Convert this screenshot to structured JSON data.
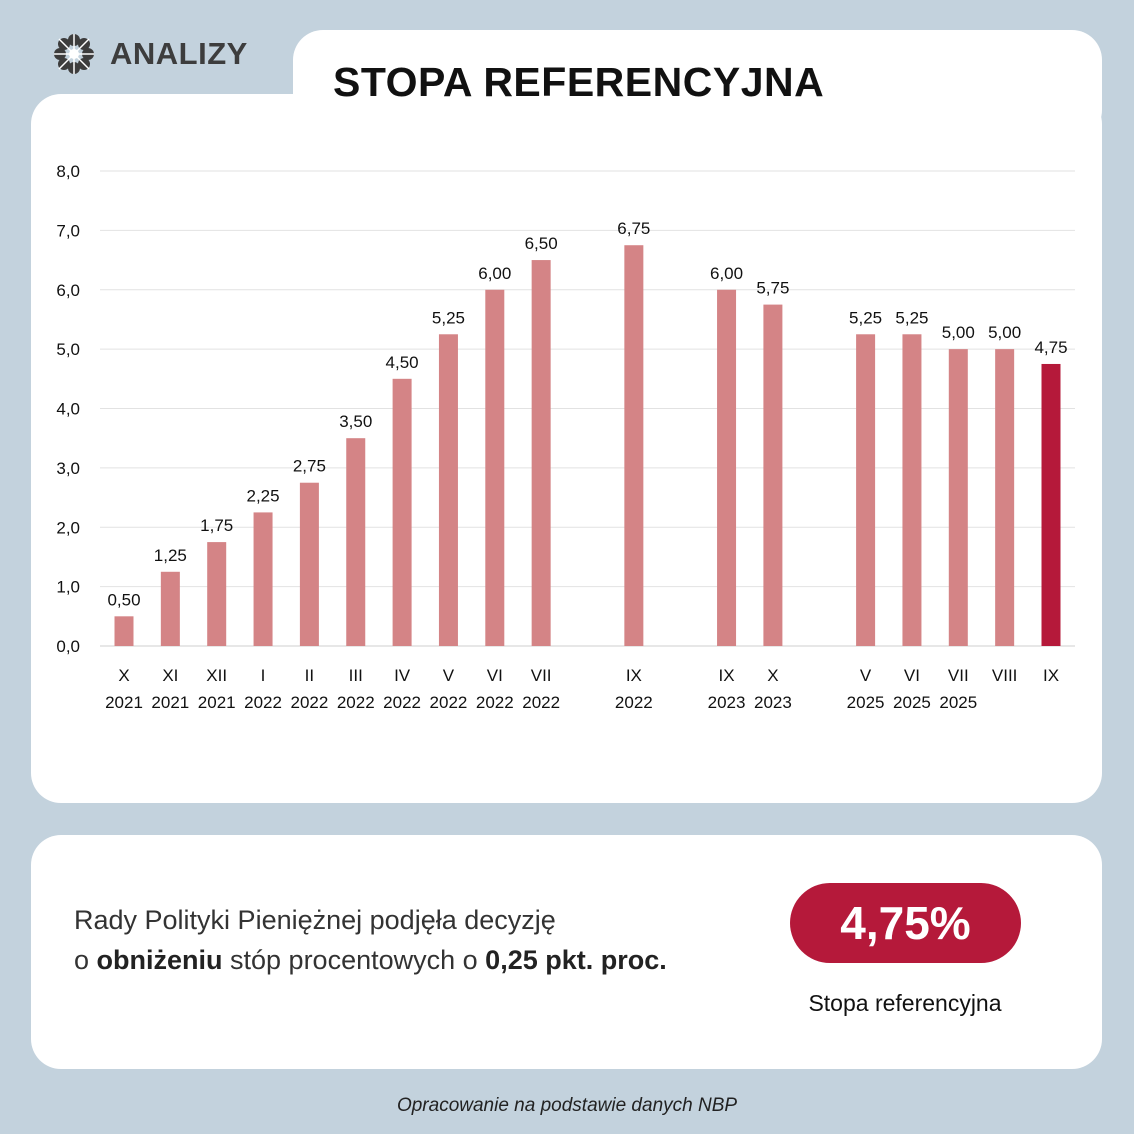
{
  "brand": {
    "name": "ANALIZY",
    "icon": "flower-logo-icon"
  },
  "title": "STOPA REFERENCYJNA",
  "chart_data": {
    "type": "bar",
    "title": "STOPA REFERENCYJNA",
    "xlabel": "",
    "ylabel": "",
    "ylim": [
      0,
      8
    ],
    "yticks": [
      "0,0",
      "1,0",
      "2,0",
      "3,0",
      "4,0",
      "5,0",
      "6,0",
      "7,0",
      "8,0"
    ],
    "grid": true,
    "series": [
      {
        "name": "Stopa referencyjna",
        "points": [
          {
            "month": "X",
            "year": "2021",
            "value": 0.5,
            "label": "0,50",
            "slot": 0
          },
          {
            "month": "XI",
            "year": "2021",
            "value": 1.25,
            "label": "1,25",
            "slot": 1
          },
          {
            "month": "XII",
            "year": "2021",
            "value": 1.75,
            "label": "1,75",
            "slot": 2
          },
          {
            "month": "I",
            "year": "2022",
            "value": 2.25,
            "label": "2,25",
            "slot": 3
          },
          {
            "month": "II",
            "year": "2022",
            "value": 2.75,
            "label": "2,75",
            "slot": 4
          },
          {
            "month": "III",
            "year": "2022",
            "value": 3.5,
            "label": "3,50",
            "slot": 5
          },
          {
            "month": "IV",
            "year": "2022",
            "value": 4.5,
            "label": "4,50",
            "slot": 6
          },
          {
            "month": "V",
            "year": "2022",
            "value": 5.25,
            "label": "5,25",
            "slot": 7
          },
          {
            "month": "VI",
            "year": "2022",
            "value": 6.0,
            "label": "6,00",
            "slot": 8
          },
          {
            "month": "VII",
            "year": "2022",
            "value": 6.5,
            "label": "6,50",
            "slot": 9
          },
          {
            "month": "IX",
            "year": "2022",
            "value": 6.75,
            "label": "6,75",
            "slot": 11
          },
          {
            "month": "IX",
            "year": "2023",
            "value": 6.0,
            "label": "6,00",
            "slot": 13
          },
          {
            "month": "X",
            "year": "2023",
            "value": 5.75,
            "label": "5,75",
            "slot": 14
          },
          {
            "month": "V",
            "year": "2025",
            "value": 5.25,
            "label": "5,25",
            "slot": 16
          },
          {
            "month": "VI",
            "year": "2025",
            "value": 5.25,
            "label": "5,25",
            "slot": 17
          },
          {
            "month": "VII",
            "year": "2025",
            "value": 5.0,
            "label": "5,00",
            "slot": 18
          },
          {
            "month": "VIII",
            "year": "",
            "value": 5.0,
            "label": "5,00",
            "slot": 19
          },
          {
            "month": "IX",
            "year": "",
            "value": 4.75,
            "label": "4,75",
            "slot": 20,
            "highlight": true
          }
        ]
      }
    ],
    "colors": {
      "bar": "#d48486",
      "highlight": "#b5193a",
      "grid": "#e2e2e2",
      "text": "#111111"
    }
  },
  "summary": {
    "line1": "Rady Polityki Pieniężnej podjęła decyzję",
    "line2_pre": "o ",
    "line2_bold1": "obniżeniu",
    "line2_mid": " stóp procentowych o ",
    "line2_bold2": "0,25 pkt. proc.",
    "rate": "4,75%",
    "rate_caption": "Stopa referencyjna"
  },
  "source": "Opracowanie na podstawie danych NBP"
}
